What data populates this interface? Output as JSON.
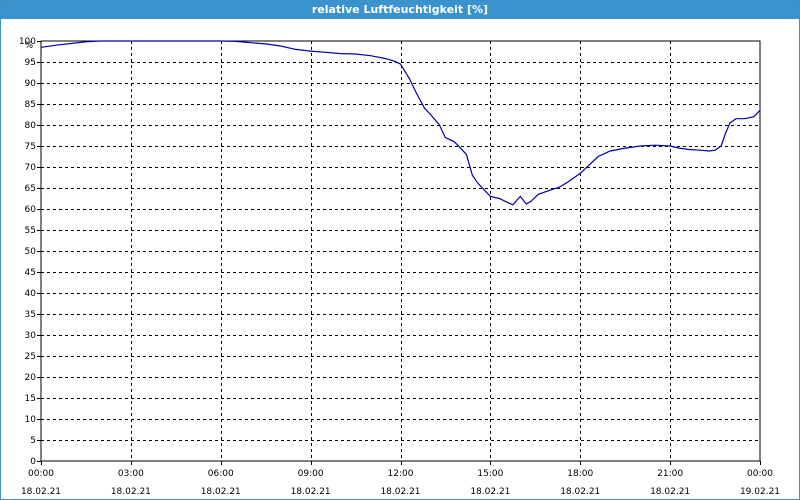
{
  "window": {
    "title": "relative Luftfeuchtigkeit [%]"
  },
  "chart_data": {
    "type": "line",
    "title": "relative Luftfeuchtigkeit [%]",
    "ylabel": "%",
    "xlabel": "",
    "ylim": [
      0,
      100
    ],
    "xlim": [
      0,
      24
    ],
    "y_ticks": [
      0,
      5,
      10,
      15,
      20,
      25,
      30,
      35,
      40,
      45,
      50,
      55,
      60,
      65,
      70,
      75,
      80,
      85,
      90,
      95,
      100
    ],
    "x_ticks": [
      {
        "hours": 0,
        "time": "00:00",
        "date": "18.02.21"
      },
      {
        "hours": 3,
        "time": "03:00",
        "date": "18.02.21"
      },
      {
        "hours": 6,
        "time": "06:00",
        "date": "18.02.21"
      },
      {
        "hours": 9,
        "time": "09:00",
        "date": "18.02.21"
      },
      {
        "hours": 12,
        "time": "12:00",
        "date": "18.02.21"
      },
      {
        "hours": 15,
        "time": "15:00",
        "date": "18.02.21"
      },
      {
        "hours": 18,
        "time": "18:00",
        "date": "18.02.21"
      },
      {
        "hours": 21,
        "time": "21:00",
        "date": "18.02.21"
      },
      {
        "hours": 24,
        "time": "00:00",
        "date": "19.02.21"
      }
    ],
    "grid": true,
    "line_color": "#0000aa",
    "series": [
      {
        "x": [
          0,
          0.5,
          1,
          1.5,
          2,
          3,
          4,
          5,
          6,
          6.5,
          7,
          7.5,
          8,
          8.5,
          9,
          9.5,
          10,
          10.5,
          11,
          11.5,
          11.8,
          12,
          12.3,
          12.5,
          12.8,
          13,
          13.3,
          13.5,
          13.8,
          14,
          14.2,
          14.4,
          14.6,
          15,
          15.3,
          15.5,
          15.75,
          16,
          16.2,
          16.35,
          16.6,
          16.8,
          17,
          17.3,
          17.6,
          18,
          18.3,
          18.6,
          19,
          19.5,
          20,
          20.5,
          21,
          21.3,
          21.6,
          22,
          22.3,
          22.5,
          22.7,
          22.85,
          23,
          23.2,
          23.5,
          23.8,
          24
        ],
        "y": [
          98.5,
          99,
          99.4,
          99.8,
          100,
          100,
          100,
          100,
          100,
          99.9,
          99.6,
          99.3,
          98.8,
          98,
          97.6,
          97.3,
          97,
          96.9,
          96.5,
          95.8,
          95.2,
          94.5,
          91,
          88,
          84,
          82.5,
          80,
          77,
          76,
          74.5,
          73,
          68,
          66,
          63,
          62.5,
          61.8,
          61,
          63,
          61.2,
          61.8,
          63.5,
          64,
          64.5,
          65.2,
          66.5,
          68.5,
          70.5,
          72.5,
          73.8,
          74.5,
          75,
          75.2,
          75,
          74.5,
          74.2,
          74,
          73.8,
          74,
          75,
          78,
          80.5,
          81.5,
          81.5,
          82,
          83.5
        ]
      }
    ]
  }
}
